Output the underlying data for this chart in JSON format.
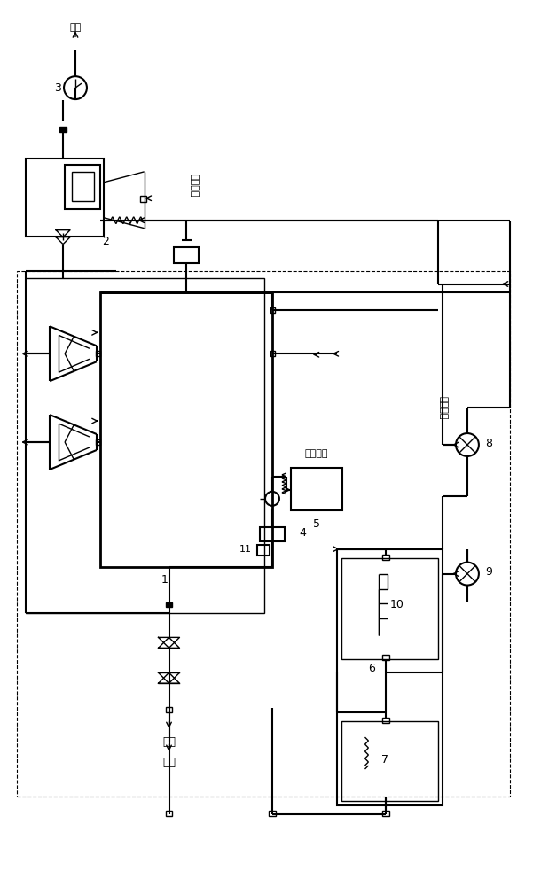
{
  "bg_color": "#ffffff",
  "line_color": "#000000",
  "line_width": 1.0,
  "fig_width": 6.01,
  "fig_height": 10.0,
  "labels": {
    "atmosphere_top": "大气",
    "nitrogen_bottom": "氮气",
    "barrel_waste_top": "桶装废品",
    "barrel_waste_mid": "桶装废品",
    "bag_product": "吨袋成品",
    "num1": "1",
    "num2": "2",
    "num3": "3",
    "num4": "4",
    "num5": "5",
    "num6": "6",
    "num7": "7",
    "num8": "8",
    "num9": "9",
    "num10": "10",
    "num11": "11"
  }
}
